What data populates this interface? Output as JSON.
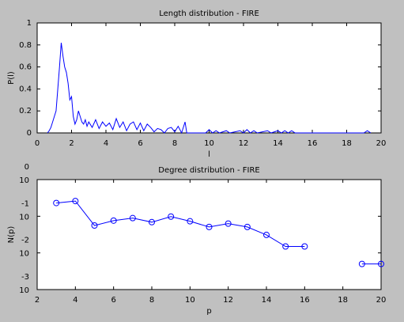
{
  "chart_data": [
    {
      "type": "line",
      "title": "Length distribution - FIRE",
      "xlabel": "l",
      "ylabel": "P(l)",
      "xlim": [
        0,
        20
      ],
      "xticks": [
        0,
        2,
        4,
        6,
        8,
        10,
        12,
        14,
        16,
        18,
        20
      ],
      "ylim": [
        0,
        1
      ],
      "yticks": [
        0,
        0.2,
        0.4,
        0.6,
        0.8,
        1
      ],
      "series": [
        {
          "color": "#0000ff",
          "x": [
            0.6,
            0.7,
            0.8,
            0.9,
            1.0,
            1.1,
            1.2,
            1.3,
            1.4,
            1.5,
            1.6,
            1.7,
            1.8,
            1.9,
            2.0,
            2.1,
            2.2,
            2.3,
            2.4,
            2.5,
            2.6,
            2.7,
            2.8,
            2.9,
            3.0,
            3.2,
            3.4,
            3.6,
            3.8,
            4.0,
            4.2,
            4.4,
            4.6,
            4.8,
            5.0,
            5.2,
            5.4,
            5.6,
            5.8,
            6.0,
            6.2,
            6.4,
            6.6,
            6.8,
            7.0,
            7.2,
            7.4,
            7.6,
            7.8,
            8.0,
            8.2,
            8.4,
            8.6,
            8.7,
            9.8,
            10.0,
            10.2,
            10.4,
            10.6,
            11.0,
            11.2,
            11.8,
            12.0,
            12.2,
            12.4,
            12.6,
            12.8,
            13.4,
            13.6,
            14.0,
            14.2,
            14.4,
            14.6,
            14.8,
            15.0,
            19.0,
            19.2,
            19.4
          ],
          "values": [
            0,
            0.02,
            0.05,
            0.1,
            0.15,
            0.2,
            0.4,
            0.6,
            0.82,
            0.7,
            0.6,
            0.55,
            0.45,
            0.3,
            0.33,
            0.15,
            0.08,
            0.12,
            0.2,
            0.15,
            0.1,
            0.08,
            0.12,
            0.06,
            0.1,
            0.05,
            0.12,
            0.04,
            0.1,
            0.06,
            0.09,
            0.03,
            0.13,
            0.05,
            0.1,
            0.02,
            0.08,
            0.1,
            0.03,
            0.09,
            0.02,
            0.08,
            0.05,
            0.01,
            0.04,
            0.03,
            0,
            0.04,
            0.05,
            0.01,
            0.06,
            0,
            0.1,
            0,
            0,
            0.03,
            0,
            0.02,
            0,
            0.02,
            0,
            0.02,
            0,
            0.03,
            0,
            0.02,
            0,
            0.02,
            0,
            0.02,
            0,
            0.02,
            0,
            0.02,
            0,
            0,
            0.02,
            0
          ]
        }
      ]
    },
    {
      "type": "line",
      "title": "Degree distribution - FIRE",
      "xlabel": "p",
      "ylabel": "N(p)",
      "log_y": true,
      "markers": "circle",
      "xlim": [
        2,
        20
      ],
      "xticks": [
        2,
        4,
        6,
        8,
        10,
        12,
        14,
        16,
        18,
        20
      ],
      "ylim": [
        0.001,
        1
      ],
      "yticks": [
        {
          "value": 1,
          "label": "10",
          "exponent": "0"
        },
        {
          "value": 0.1,
          "label": "10",
          "exponent": "-1"
        },
        {
          "value": 0.01,
          "label": "10",
          "exponent": "-2"
        },
        {
          "value": 0.001,
          "label": "10",
          "exponent": "-3"
        }
      ],
      "series": [
        {
          "color": "#0000ff",
          "x": [
            3,
            4,
            5,
            6,
            7,
            8,
            9,
            10,
            11,
            12,
            13,
            14,
            15,
            16,
            17,
            18,
            19,
            20
          ],
          "values": [
            0.23,
            0.26,
            0.056,
            0.076,
            0.089,
            0.069,
            0.098,
            0.073,
            0.051,
            0.063,
            0.051,
            0.031,
            0.015,
            0.015,
            null,
            null,
            0.005,
            0.005
          ]
        }
      ]
    }
  ]
}
